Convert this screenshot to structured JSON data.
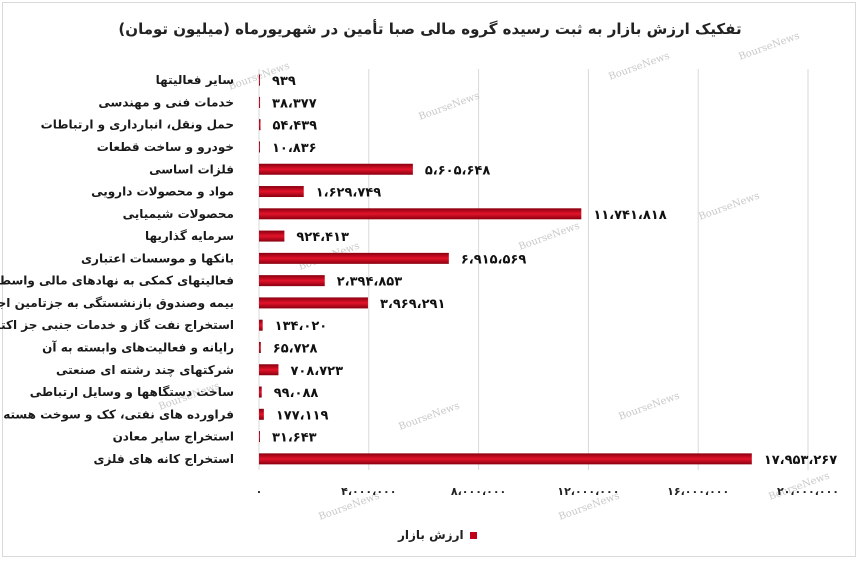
{
  "chart_data": {
    "type": "bar",
    "orientation": "horizontal",
    "title": "تفکیک ارزش بازار به ثبت رسیده گروه مالی صبا تأمین در شهریورماه (میلیون تومان)",
    "categories": [
      "سایر فعالیتها",
      "خدمات فنی و مهندسی",
      "حمل ونقل، انبارداری و ارتباطات",
      "خودرو و ساخت قطعات",
      "فلزات اساسی",
      "مواد و محصولات دارویی",
      "محصولات شیمیایی",
      "سرمایه گذاریها",
      "بانکها و موسسات اعتباری",
      "فعالیتهای کمکی به نهادهای مالی واسط",
      "بیمه وصندوق بازنشستگی به جزتامین اجتماعی",
      "استخراج نفت گاز و خدمات جنبی جز اکتشاف",
      "رایانه و فعالیت‌های وابسته به آن",
      "شرکتهای چند رشته ای صنعتی",
      "ساخت دستگاهها و وسایل ارتباطی",
      "فراورده های نفتی، کک و سوخت هسته ای",
      "استخراج سایر معادن",
      "استخراج کانه های فلزی"
    ],
    "values": [
      939,
      38377,
      54439,
      10836,
      5605648,
      1629749,
      11741818,
      924413,
      6915569,
      2394853,
      3969291,
      134020,
      65728,
      708723,
      99088,
      177119,
      31643,
      17953267
    ],
    "value_labels": [
      "۹۳۹",
      "۳۸،۳۷۷",
      "۵۴،۴۳۹",
      "۱۰،۸۳۶",
      "۵،۶۰۵،۶۴۸",
      "۱،۶۲۹،۷۴۹",
      "۱۱،۷۴۱،۸۱۸",
      "۹۲۴،۴۱۳",
      "۶،۹۱۵،۵۶۹",
      "۲،۳۹۴،۸۵۳",
      "۳،۹۶۹،۲۹۱",
      "۱۳۴،۰۲۰",
      "۶۵،۷۲۸",
      "۷۰۸،۷۲۳",
      "۹۹،۰۸۸",
      "۱۷۷،۱۱۹",
      "۳۱،۶۴۳",
      "۱۷،۹۵۳،۲۶۷"
    ],
    "xlim": [
      0,
      20000000
    ],
    "x_ticks": [
      0,
      4000000,
      8000000,
      12000000,
      16000000,
      20000000
    ],
    "x_tick_labels": [
      "۰",
      "۴،۰۰۰،۰۰۰",
      "۸،۰۰۰،۰۰۰",
      "۱۲،۰۰۰،۰۰۰",
      "۱۶،۰۰۰،۰۰۰",
      "۲۰،۰۰۰،۰۰۰"
    ],
    "series": [
      {
        "name": "ارزش بازار",
        "color": "#c0001a"
      }
    ],
    "grid": "vertical",
    "legend_position": "bottom"
  },
  "colors": {
    "bar_top": "#8a0010",
    "bar_mid": "#e2132a",
    "bar_bottom": "#8a0010",
    "grid": "#d9d9d9"
  },
  "watermark": "BourseNews"
}
